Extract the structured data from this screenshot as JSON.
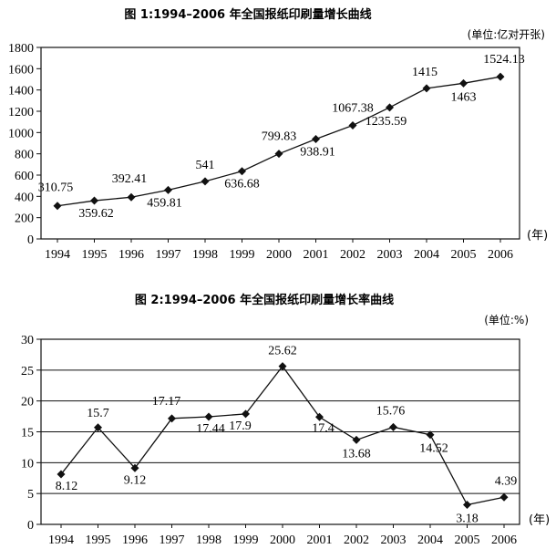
{
  "chart_data": [
    {
      "type": "line",
      "title": "图 1:1994–2006 年全国报纸印刷量增长曲线",
      "unit_label": "(单位:亿对开张)",
      "x_unit_label": "(年)",
      "categories": [
        "1994",
        "1995",
        "1996",
        "1997",
        "1998",
        "1999",
        "2000",
        "2001",
        "2002",
        "2003",
        "2004",
        "2005",
        "2006"
      ],
      "values": [
        310.75,
        359.62,
        392.41,
        459.81,
        541,
        636.68,
        799.83,
        938.91,
        1067.38,
        1235.59,
        1415,
        1463,
        1524.13
      ],
      "data_labels": [
        "310.75",
        "359.62",
        "392.41",
        "459.81",
        "541",
        "636.68",
        "799.83",
        "938.91",
        "1067.38",
        "1235.59",
        "1415",
        "1463",
        "1524.13"
      ],
      "y_ticks": [
        "0",
        "200",
        "400",
        "600",
        "800",
        "1000",
        "1200",
        "1400",
        "1600",
        "1800"
      ],
      "ylim": [
        0,
        1800
      ],
      "grid": false,
      "marker": "diamond"
    },
    {
      "type": "line",
      "title": "图 2:1994–2006 年全国报纸印刷量增长率曲线",
      "unit_label": "(单位:%)",
      "x_unit_label": "(年)",
      "categories": [
        "1994",
        "1995",
        "1996",
        "1997",
        "1998",
        "1999",
        "2000",
        "2001",
        "2002",
        "2003",
        "2004",
        "2005",
        "2006"
      ],
      "values": [
        8.12,
        15.7,
        9.12,
        17.17,
        17.44,
        17.9,
        25.62,
        17.4,
        13.68,
        15.76,
        14.52,
        3.18,
        4.39
      ],
      "data_labels": [
        "8.12",
        "15.7",
        "9.12",
        "17.17",
        "17.44",
        "17.9",
        "25.62",
        "17.4",
        "13.68",
        "15.76",
        "14.52",
        "3.18",
        "4.39"
      ],
      "y_ticks": [
        "0",
        "5",
        "10",
        "15",
        "20",
        "25",
        "30"
      ],
      "ylim": [
        0,
        30
      ],
      "grid": true,
      "marker": "diamond"
    }
  ]
}
